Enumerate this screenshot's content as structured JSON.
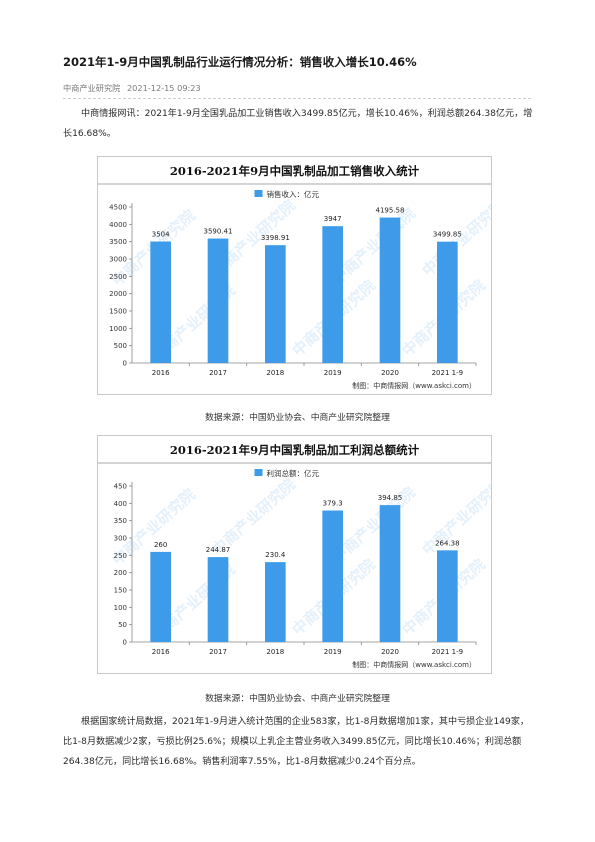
{
  "article": {
    "title": "2021年1-9月中国乳制品行业运行情况分析：销售收入增长10.46%",
    "source": "中商产业研究院",
    "date": "2021-12-15 09:23",
    "intro": "中商情报网讯：2021年1-9月全国乳品加工业销售收入3499.85亿元，增长10.46%，利润总额264.38亿元，增长16.68%。",
    "body": "根据国家统计局数据，2021年1-9月进入统计范围的企业583家，比1-8月数据增加1家，其中亏损企业149家，比1-8月数据减少2家，亏损比例25.6%；规模以上乳企主营业务收入3499.85亿元，同比增长10.46%；利润总额264.38亿元，同比增长16.68%。销售利润率7.55%，比1-8月数据减少0.24个百分点。",
    "caption1": "数据来源：中国奶业协会、中商产业研究院整理",
    "caption2": "数据来源：中国奶业协会、中商产业研究院整理"
  },
  "watermark": "中商产业研究院",
  "colors": {
    "bar": "#3d9be9",
    "watermark": "#5aa9e6",
    "header_line": "#aaaaaa"
  },
  "chart_data": [
    {
      "type": "bar",
      "title": "2016-2021年9月中国乳制品加工销售收入统计",
      "legend": "销售收入：亿元",
      "legend_position": "top",
      "credit": "制图：中商情报网（www.askci.com）",
      "categories": [
        "2016",
        "2017",
        "2018",
        "2019",
        "2020",
        "2021 1-9"
      ],
      "values": [
        3504,
        3590.41,
        3398.91,
        3947,
        4195.58,
        3499.85
      ],
      "value_labels": [
        "3504",
        "3590.41",
        "3398.91",
        "3947",
        "4195.58",
        "3499.85"
      ],
      "ylim": [
        0,
        4500
      ],
      "yticks": [
        0,
        500,
        1000,
        1500,
        2000,
        2500,
        3000,
        3500,
        4000,
        4500
      ],
      "grid": false
    },
    {
      "type": "bar",
      "title": "2016-2021年9月中国乳制品加工利润总额统计",
      "legend": "利润总额：亿元",
      "legend_position": "top",
      "credit": "制图：中商情报网（www.askci.com）",
      "categories": [
        "2016",
        "2017",
        "2018",
        "2019",
        "2020",
        "2021 1-9"
      ],
      "values": [
        260,
        244.87,
        230.4,
        379.3,
        394.85,
        264.38
      ],
      "value_labels": [
        "260",
        "244.87",
        "230.4",
        "379.3",
        "394.85",
        "264.38"
      ],
      "ylim": [
        0,
        450
      ],
      "yticks": [
        0,
        50,
        100,
        150,
        200,
        250,
        300,
        350,
        400,
        450
      ],
      "grid": false
    }
  ]
}
